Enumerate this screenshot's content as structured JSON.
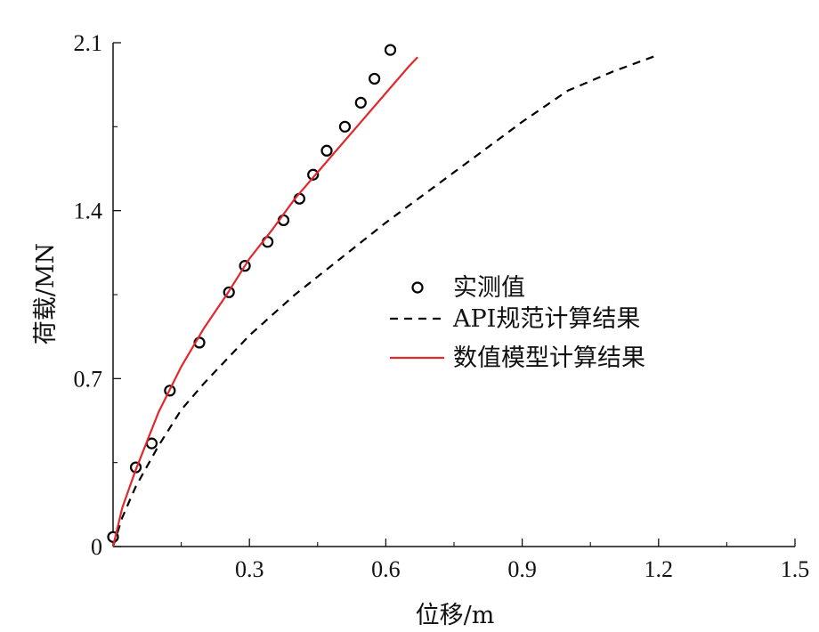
{
  "chart_data": {
    "type": "line",
    "title": "",
    "xlabel": "位移/m",
    "ylabel": "荷载/MN",
    "xlim": [
      0,
      1.5
    ],
    "ylim": [
      0,
      2.1
    ],
    "x_ticks": [
      0.3,
      0.6,
      0.9,
      1.2,
      1.5
    ],
    "x_tick_labels": [
      "0.3",
      "0.6",
      "0.9",
      "1.2",
      "1.5"
    ],
    "y_ticks": [
      0,
      0.7,
      1.4,
      2.1
    ],
    "y_tick_labels": [
      "0",
      "0.7",
      "1.4",
      "2.1"
    ],
    "grid": false,
    "legend_position": "right-middle",
    "series": [
      {
        "name": "实测值",
        "style": "markers",
        "marker": "circle",
        "color": "#000000",
        "x": [
          0.0,
          0.05,
          0.085,
          0.125,
          0.19,
          0.255,
          0.29,
          0.34,
          0.375,
          0.41,
          0.44,
          0.47,
          0.51,
          0.545,
          0.575,
          0.61
        ],
        "y": [
          0.04,
          0.33,
          0.43,
          0.65,
          0.85,
          1.06,
          1.17,
          1.27,
          1.36,
          1.45,
          1.55,
          1.65,
          1.75,
          1.85,
          1.95,
          2.07
        ]
      },
      {
        "name": "API规范计算结果",
        "style": "dashed",
        "color": "#000000",
        "x": [
          0.0,
          0.02,
          0.05,
          0.1,
          0.15,
          0.2,
          0.3,
          0.4,
          0.5,
          0.6,
          0.7,
          0.8,
          0.9,
          1.0,
          1.05,
          1.1,
          1.2
        ],
        "y": [
          0.0,
          0.12,
          0.25,
          0.42,
          0.57,
          0.68,
          0.88,
          1.05,
          1.2,
          1.35,
          1.49,
          1.63,
          1.77,
          1.9,
          1.94,
          1.98,
          2.05
        ]
      },
      {
        "name": "数值模型计算结果",
        "style": "solid",
        "color": "#e0282e",
        "x": [
          0.0,
          0.02,
          0.05,
          0.1,
          0.15,
          0.2,
          0.25,
          0.3,
          0.35,
          0.4,
          0.45,
          0.5,
          0.55,
          0.6,
          0.65,
          0.67
        ],
        "y": [
          0.0,
          0.16,
          0.32,
          0.56,
          0.75,
          0.91,
          1.05,
          1.2,
          1.32,
          1.45,
          1.56,
          1.67,
          1.78,
          1.89,
          2.0,
          2.04
        ]
      }
    ]
  }
}
